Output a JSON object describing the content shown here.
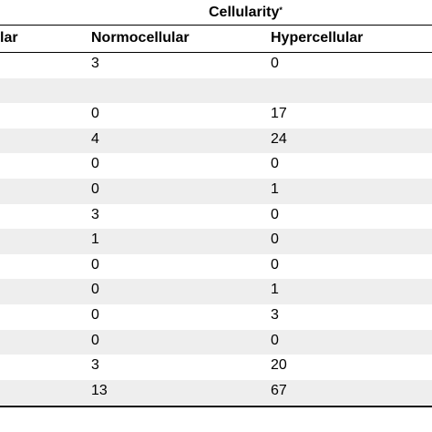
{
  "table": {
    "group_header": "Cellularity",
    "group_header_marker": "*",
    "columns": [
      "lar",
      "Normocellular",
      "Hypercellular"
    ],
    "rows": [
      {
        "normocellular": "3",
        "hypercellular": "0"
      },
      {
        "normocellular": "",
        "hypercellular": ""
      },
      {
        "normocellular": "0",
        "hypercellular": "17"
      },
      {
        "normocellular": "4",
        "hypercellular": "24"
      },
      {
        "normocellular": "0",
        "hypercellular": "0"
      },
      {
        "normocellular": "0",
        "hypercellular": "1"
      },
      {
        "normocellular": "3",
        "hypercellular": "0"
      },
      {
        "normocellular": "1",
        "hypercellular": "0"
      },
      {
        "normocellular": "0",
        "hypercellular": "0"
      },
      {
        "normocellular": "0",
        "hypercellular": "1"
      },
      {
        "normocellular": "0",
        "hypercellular": "3"
      },
      {
        "normocellular": "0",
        "hypercellular": "0"
      },
      {
        "normocellular": "3",
        "hypercellular": "20"
      },
      {
        "normocellular": "13",
        "hypercellular": "67"
      }
    ]
  }
}
